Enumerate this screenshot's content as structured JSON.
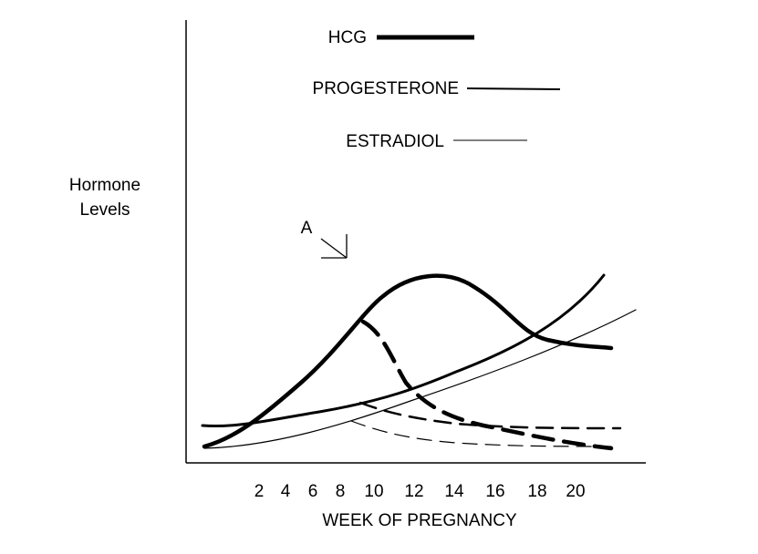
{
  "legend": [
    {
      "label": "HCG"
    },
    {
      "label": "PROGESTERONE"
    },
    {
      "label": "ESTRADIOL"
    }
  ],
  "y_axis_label": [
    "Hormone",
    "Levels"
  ],
  "annotation": "A",
  "x_ticks": [
    2,
    4,
    6,
    8,
    10,
    12,
    14,
    16,
    18,
    20
  ],
  "x_axis_label": "WEEK OF PREGNANCY"
}
